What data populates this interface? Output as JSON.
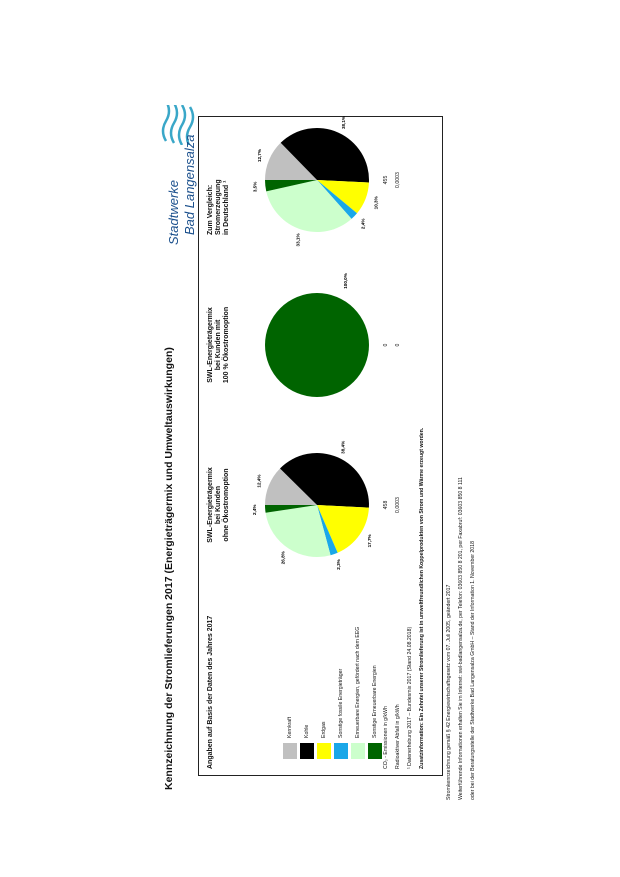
{
  "title": "Kennzeichnung der Stromlieferungen 2017 (Energieträgermix und Umweltauswirkungen)",
  "logo": {
    "line1": "Stadtwerke",
    "line2": "Bad Langensalza"
  },
  "header": "Angaben auf Basis der Daten des Jahres 2017",
  "legend": [
    {
      "label": "Kernkraft",
      "color": "#c0c0c0"
    },
    {
      "label": "Kohle",
      "color": "#000000"
    },
    {
      "label": "Erdgas",
      "color": "#ffff00"
    },
    {
      "label": "Sonstige fossile Energieträger",
      "color": "#1aa7e8"
    },
    {
      "label": "Erneuerbare Energien, gefördert nach dem EEG",
      "color": "#ccffcc"
    },
    {
      "label": "Sonstige Erneuerbare Energien",
      "color": "#006400"
    }
  ],
  "columns": [
    {
      "title_lines": [
        "SWL-Energieträgermix",
        "bei Kunden",
        "ohne Ökostromoption"
      ]
    },
    {
      "title_lines": [
        "SWL-Energieträgermix",
        "bei Kunden mit",
        "100 % Ökostromoption"
      ]
    },
    {
      "title_lines": [
        "Zum Vergleich:",
        "Stromerzeugung",
        "in Deutschland ¹"
      ]
    }
  ],
  "chart_data": [
    {
      "type": "pie",
      "title": "SWL-Energieträgermix bei Kunden ohne Ökostromoption",
      "categories": [
        "Kernkraft",
        "Kohle",
        "Erdgas",
        "Sonstige fossile Energieträger",
        "Erneuerbare Energien, gefördert nach dem EEG",
        "Sonstige Erneuerbare Energien"
      ],
      "values": [
        12.4,
        38.4,
        17.7,
        2.3,
        26.8,
        2.4
      ],
      "labels": [
        "12,4%",
        "38,4%",
        "17,7%",
        "2,3%",
        "26,8%",
        "2,4%"
      ]
    },
    {
      "type": "pie",
      "title": "SWL-Energieträgermix bei Kunden mit 100 % Ökostromoption",
      "categories": [
        "Sonstige Erneuerbare Energien"
      ],
      "values": [
        100.0
      ],
      "labels": [
        "100,0%"
      ]
    },
    {
      "type": "pie",
      "title": "Zum Vergleich: Stromerzeugung in Deutschland ¹",
      "categories": [
        "Kernkraft",
        "Kohle",
        "Erdgas",
        "Sonstige fossile Energieträger",
        "Erneuerbare Energien, gefördert nach dem EEG",
        "Sonstige Erneuerbare Energien"
      ],
      "values": [
        12.7,
        38.1,
        10.3,
        2.4,
        33.1,
        3.5
      ],
      "labels": [
        "12,7%",
        "38,1%",
        "10,3%",
        "2,4%",
        "33,1%",
        "3,5%"
      ]
    }
  ],
  "metrics": [
    {
      "label": "CO₂ - Emissionen in g/kWh",
      "values": [
        "458",
        "0",
        "455"
      ]
    },
    {
      "label": "Radioaktiver Abfall in g/kWh",
      "values": [
        "0,0003",
        "0",
        "0,0003"
      ]
    }
  ],
  "notes": [
    "¹ Datenerhebung 2017 – Bundesmix 2017 (Stand 24.08.2018)",
    "Zusatzinformation: Ein Zehntel unserer Stromlieferung ist in umweltfreundlichen Koppelprodukten von Strom und Wärme erzeugt worden."
  ],
  "footer": [
    "Stromkennzeichnung gemäß § 42 Energiewirtschaftsgesetz vom 07. Juli 2005, geändert 2017",
    "Weiterführende Informationen erhalten Sie im Internet: swl-badlangensalza.de, per Telefon: 03603 850 8 201, per Faxabruf: 03603 850 8 111",
    "oder bei der Beratungsstelle der Stadtwerke Bad Langensalza GmbH – Stand der Information 1. November 2018"
  ]
}
